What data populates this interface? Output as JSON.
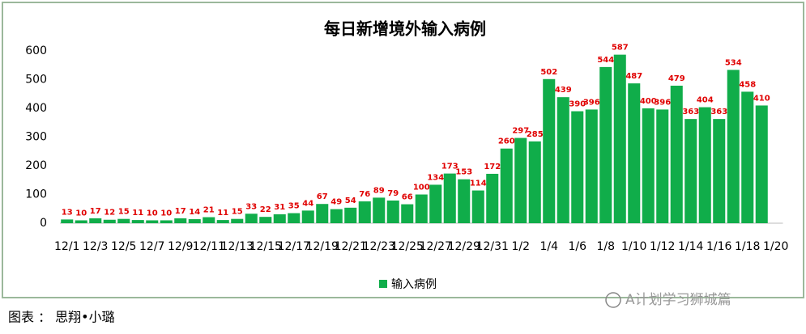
{
  "chart_data": {
    "type": "bar",
    "title": "每日新增境外输入病例",
    "categories": [
      "12/1",
      null,
      "12/3",
      null,
      "12/5",
      null,
      "12/7",
      null,
      "12/9",
      null,
      "12/11",
      null,
      "12/13",
      null,
      "12/15",
      null,
      "12/17",
      null,
      "12/19",
      null,
      "12/21",
      null,
      "12/23",
      null,
      "12/25",
      null,
      "12/27",
      null,
      "12/29",
      null,
      "12/31",
      null,
      "1/2",
      null,
      "1/4",
      null,
      "1/6",
      null,
      "1/8",
      null,
      "1/10",
      null,
      "1/12",
      null,
      "1/14",
      null,
      "1/16",
      null,
      "1/18",
      null,
      "1/20"
    ],
    "series": [
      {
        "name": "输入病例",
        "color": "#10ad4a",
        "values": [
          13,
          10,
          17,
          12,
          15,
          11,
          10,
          10,
          17,
          14,
          21,
          11,
          15,
          33,
          22,
          31,
          35,
          44,
          67,
          49,
          54,
          76,
          89,
          79,
          66,
          100,
          134,
          173,
          153,
          114,
          172,
          260,
          297,
          285,
          502,
          439,
          390,
          396,
          544,
          587,
          487,
          400,
          396,
          479,
          363,
          404,
          363,
          534,
          458,
          410,
          null
        ]
      }
    ],
    "ylim": [
      0,
      600
    ],
    "yticks": [
      0,
      100,
      200,
      300,
      400,
      500,
      600
    ],
    "grid": false,
    "legend": "bottom",
    "value_label_color": "#e00000"
  },
  "footer": "图表 ： 思翔•小璐",
  "watermark": "A计划学习狮城篇"
}
